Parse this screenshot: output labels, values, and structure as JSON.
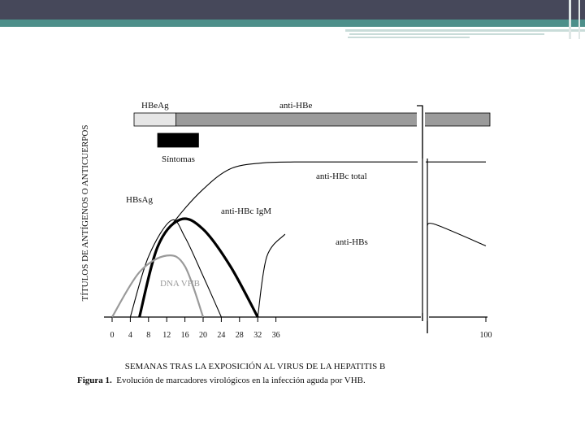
{
  "chart_data": {
    "type": "line",
    "ylabel": "TÍTULOS DE ANTÍGENOS O ANTICUERPOS",
    "xlabel": "SEMANAS TRAS LA EXPOSICIÓN AL VIRUS DE LA HEPATITIS B",
    "x_ticks": [
      0,
      4,
      8,
      12,
      16,
      20,
      24,
      28,
      32,
      36,
      100
    ],
    "axis_break": "after 36",
    "bars": [
      {
        "label": "HBeAg",
        "start": 4,
        "end": 14,
        "color": "#e6e6e6"
      },
      {
        "label": "anti-HBe",
        "start": 14,
        "end": 100,
        "color": "#9b9b9b"
      },
      {
        "label": "Síntomas",
        "start": 10,
        "end": 19,
        "color": "#000000"
      }
    ],
    "series": [
      {
        "name": "HBsAg",
        "color": "#000000",
        "style": "thin",
        "points": [
          [
            4,
            0
          ],
          [
            8,
            62
          ],
          [
            13,
            99
          ],
          [
            16,
            82
          ],
          [
            20,
            42
          ],
          [
            24,
            0
          ]
        ]
      },
      {
        "name": "anti-HBc total",
        "color": "#000000",
        "style": "thin",
        "points": [
          [
            6,
            0
          ],
          [
            10,
            72
          ],
          [
            14,
            100
          ],
          [
            20,
            131
          ],
          [
            26,
            152
          ],
          [
            33,
            158
          ],
          [
            40,
            159
          ],
          [
            100,
            159
          ]
        ]
      },
      {
        "name": "anti-HBc IgM",
        "color": "#000000",
        "style": "thick",
        "points": [
          [
            6,
            0
          ],
          [
            10,
            72
          ],
          [
            15,
            100
          ],
          [
            20,
            90
          ],
          [
            26,
            52
          ],
          [
            32,
            0
          ]
        ]
      },
      {
        "name": "anti-HBs",
        "color": "#000000",
        "style": "thin",
        "points": [
          [
            32,
            0
          ],
          [
            34,
            62
          ],
          [
            38,
            85
          ],
          [
            42,
            93
          ],
          [
            50,
            95
          ],
          [
            100,
            73
          ]
        ]
      },
      {
        "name": "DNA   VHB",
        "color": "#9a9a9a",
        "style": "gray",
        "points": [
          [
            0,
            0
          ],
          [
            6,
            46
          ],
          [
            12,
            63
          ],
          [
            16,
            52
          ],
          [
            20,
            0
          ]
        ]
      }
    ]
  },
  "caption": {
    "label": "Figura 1.",
    "text": "Evolución de marcadores virológicos en la infección aguda por VHB."
  }
}
